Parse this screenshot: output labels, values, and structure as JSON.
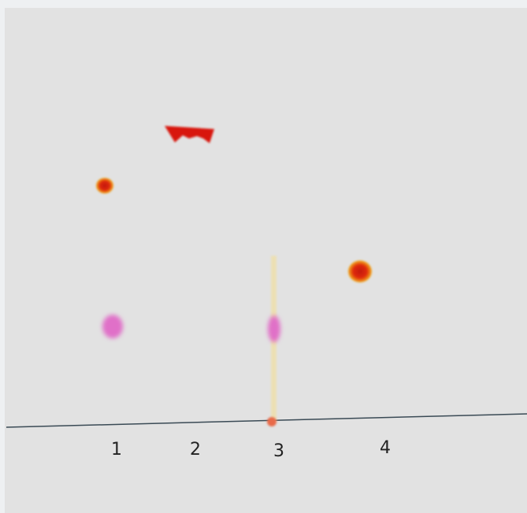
{
  "lanes": [
    {
      "label": "1"
    },
    {
      "label": "2"
    },
    {
      "label": "3"
    },
    {
      "label": "4"
    }
  ]
}
